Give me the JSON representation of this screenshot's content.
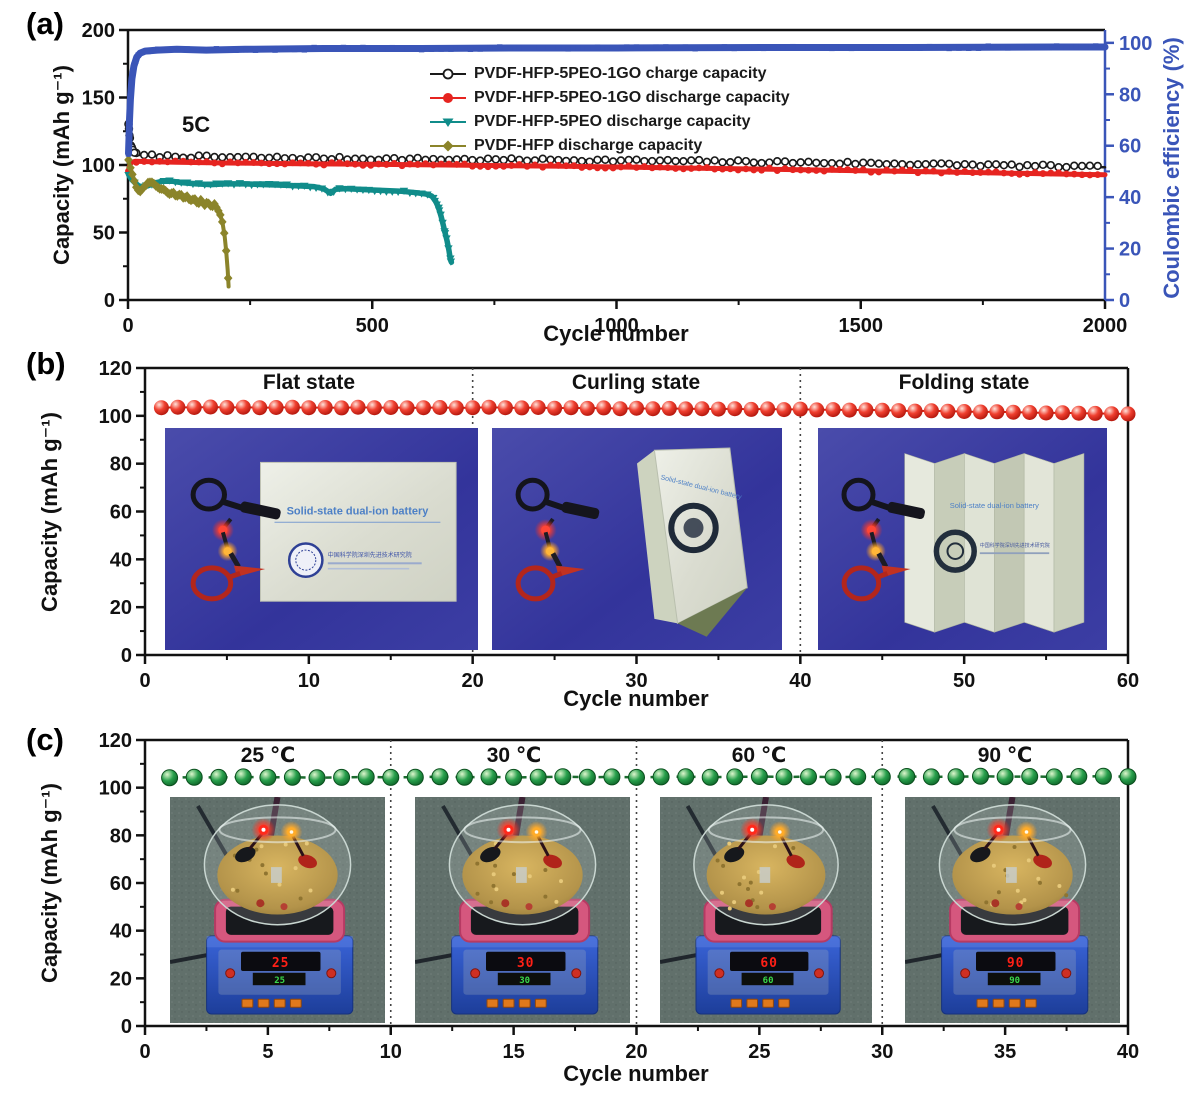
{
  "figure": {
    "panel_a": {
      "label": "(a)"
    },
    "panel_b": {
      "label": "(b)",
      "pouch_title": "Solid-state dual-ion battery",
      "pouch_subtitle": "中国科学院深圳先进技术研究院",
      "photos": [
        {
          "state": "flat"
        },
        {
          "state": "curling"
        },
        {
          "state": "folding"
        }
      ]
    },
    "panel_c": {
      "label": "(c)",
      "photos": [
        {
          "temp": "25"
        },
        {
          "temp": "30"
        },
        {
          "temp": "60"
        },
        {
          "temp": "90"
        }
      ]
    }
  },
  "colors": {
    "charge_black": "#1a1a1a",
    "discharge_red": "#e62420",
    "peo_teal": "#108c8a",
    "hfp_olive": "#8b842a",
    "efficiency_blue": "#3a55b8",
    "sphere_red": "#e8281e",
    "sphere_green": "#1d9644"
  },
  "chart_data": [
    {
      "id": "panel-a",
      "type": "scatter",
      "xlabel": "Cycle number",
      "ylabel_left": "Capacity (mAh g⁻¹)",
      "ylabel_right": "Coulombic efficiency (%)",
      "annotation": "5C",
      "xlim": [
        0,
        2000
      ],
      "xticks": [
        0,
        500,
        1000,
        1500,
        2000
      ],
      "xminor": [
        250,
        750,
        1250,
        1750
      ],
      "ylim_left": [
        0,
        200
      ],
      "yticks_left": [
        0,
        50,
        100,
        150,
        200
      ],
      "yminor_left": [
        25,
        75,
        125,
        175
      ],
      "ylim_right": [
        0,
        105
      ],
      "yticks_right": [
        0,
        20,
        40,
        60,
        80,
        100
      ],
      "yminor_right": [
        10,
        30,
        50,
        70,
        90
      ],
      "series": [
        {
          "name": "PVDF-HFP-5PEO-1GO charge capacity",
          "color": "#1a1a1a",
          "marker": "open-circle",
          "axis": "left",
          "points": [
            [
              1,
              131
            ],
            [
              2,
              126
            ],
            [
              4,
              119
            ],
            [
              7,
              113
            ],
            [
              12,
              109
            ],
            [
              20,
              107.5
            ],
            [
              40,
              107
            ],
            [
              80,
              106.5
            ],
            [
              150,
              106
            ],
            [
              250,
              105.5
            ],
            [
              400,
              105
            ],
            [
              550,
              104.5
            ],
            [
              700,
              104
            ],
            [
              850,
              103.8
            ],
            [
              1000,
              103.3
            ],
            [
              1150,
              102.8
            ],
            [
              1300,
              102.3
            ],
            [
              1450,
              101.6
            ],
            [
              1600,
              100.8
            ],
            [
              1750,
              100
            ],
            [
              1900,
              99
            ],
            [
              2000,
              98.3
            ]
          ]
        },
        {
          "name": "PVDF-HFP-5PEO-1GO discharge capacity",
          "color": "#e62420",
          "marker": "circle",
          "axis": "left",
          "points": [
            [
              1,
              96
            ],
            [
              2,
              98
            ],
            [
              4,
              100.5
            ],
            [
              8,
              102
            ],
            [
              15,
              102.8
            ],
            [
              40,
              102.5
            ],
            [
              100,
              102
            ],
            [
              200,
              101.5
            ],
            [
              350,
              101
            ],
            [
              500,
              100.5
            ],
            [
              700,
              99.8
            ],
            [
              900,
              99
            ],
            [
              1100,
              98
            ],
            [
              1300,
              97
            ],
            [
              1500,
              95.8
            ],
            [
              1700,
              94.6
            ],
            [
              1900,
              93.3
            ],
            [
              2000,
              92.8
            ]
          ]
        },
        {
          "name": "PVDF-HFP-5PEO discharge capacity",
          "color": "#108c8a",
          "marker": "triangle-down",
          "axis": "left",
          "points": [
            [
              1,
              93
            ],
            [
              4,
              91
            ],
            [
              8,
              89
            ],
            [
              14,
              87
            ],
            [
              22,
              84.5
            ],
            [
              30,
              83.5
            ],
            [
              40,
              84.5
            ],
            [
              55,
              86.5
            ],
            [
              70,
              88
            ],
            [
              90,
              88
            ],
            [
              110,
              87
            ],
            [
              140,
              86
            ],
            [
              170,
              85.5
            ],
            [
              200,
              86
            ],
            [
              240,
              86
            ],
            [
              280,
              85.5
            ],
            [
              320,
              85
            ],
            [
              350,
              84.5
            ],
            [
              380,
              84
            ],
            [
              400,
              82.5
            ],
            [
              415,
              79
            ],
            [
              425,
              82
            ],
            [
              445,
              82.5
            ],
            [
              470,
              82
            ],
            [
              500,
              81.5
            ],
            [
              530,
              81
            ],
            [
              560,
              80.5
            ],
            [
              590,
              79.5
            ],
            [
              610,
              78.5
            ],
            [
              622,
              77
            ],
            [
              630,
              73
            ],
            [
              636,
              68
            ],
            [
              641,
              62
            ],
            [
              645,
              56
            ],
            [
              649,
              50
            ],
            [
              653,
              44
            ],
            [
              657,
              37
            ],
            [
              660,
              30
            ],
            [
              662,
              28
            ]
          ]
        },
        {
          "name": "PVDF-HFP discharge capacity",
          "color": "#8b842a",
          "marker": "diamond",
          "axis": "left",
          "points": [
            [
              1,
              104
            ],
            [
              3,
              100
            ],
            [
              6,
              97
            ],
            [
              10,
              92
            ],
            [
              14,
              87
            ],
            [
              18,
              83
            ],
            [
              24,
              80.5
            ],
            [
              30,
              82
            ],
            [
              36,
              85
            ],
            [
              43,
              87.5
            ],
            [
              50,
              87
            ],
            [
              57,
              84.5
            ],
            [
              64,
              82
            ],
            [
              71,
              83
            ],
            [
              78,
              80.5
            ],
            [
              85,
              78.5
            ],
            [
              92,
              80
            ],
            [
              99,
              76.5
            ],
            [
              107,
              78.5
            ],
            [
              114,
              75
            ],
            [
              121,
              77
            ],
            [
              128,
              73.5
            ],
            [
              136,
              75.5
            ],
            [
              143,
              71.5
            ],
            [
              150,
              74
            ],
            [
              157,
              70.5
            ],
            [
              164,
              72.5
            ],
            [
              171,
              69
            ],
            [
              178,
              71
            ],
            [
              184,
              67
            ],
            [
              189,
              63
            ],
            [
              194,
              56
            ],
            [
              198,
              47
            ],
            [
              201,
              36
            ],
            [
              204,
              22
            ],
            [
              206,
              10
            ]
          ]
        },
        {
          "name": "Coulombic efficiency",
          "color": "#3a55b8",
          "marker": "square",
          "axis": "right",
          "points": [
            [
              1,
              57
            ],
            [
              2,
              63
            ],
            [
              3,
              70
            ],
            [
              5,
              78
            ],
            [
              8,
              86
            ],
            [
              12,
              91
            ],
            [
              18,
              94.5
            ],
            [
              25,
              96
            ],
            [
              35,
              96.8
            ],
            [
              60,
              97.2
            ],
            [
              100,
              97.5
            ],
            [
              160,
              97.2
            ],
            [
              240,
              97.5
            ],
            [
              400,
              97.8
            ],
            [
              600,
              97.8
            ],
            [
              800,
              98
            ],
            [
              1000,
              98
            ],
            [
              1300,
              98.2
            ],
            [
              1600,
              98.2
            ],
            [
              1900,
              98.4
            ],
            [
              2000,
              98.4
            ]
          ]
        }
      ]
    },
    {
      "id": "panel-b",
      "type": "scatter",
      "xlabel": "Cycle number",
      "ylabel": "Capacity (mAh g⁻¹)",
      "xlim": [
        0,
        60
      ],
      "xticks": [
        0,
        10,
        20,
        30,
        40,
        50,
        60
      ],
      "ylim": [
        0,
        120
      ],
      "yticks": [
        0,
        20,
        40,
        60,
        80,
        100,
        120
      ],
      "dividers": [
        20,
        40
      ],
      "sections": [
        {
          "label": "Flat state",
          "range": [
            0,
            20
          ]
        },
        {
          "label": "Curling state",
          "range": [
            20,
            40
          ]
        },
        {
          "label": "Folding state",
          "range": [
            40,
            60
          ]
        }
      ],
      "marker": "sphere",
      "color": "#e8281e",
      "x_start": 1,
      "values": [
        103.4,
        103.6,
        103.5,
        103.7,
        103.5,
        103.6,
        103.4,
        103.5,
        103.6,
        103.4,
        103.5,
        103.3,
        103.6,
        103.4,
        103.5,
        103.3,
        103.4,
        103.5,
        103.3,
        103.4,
        103.6,
        103.4,
        103.3,
        103.5,
        103.2,
        103.4,
        103.1,
        103.3,
        103.0,
        103.2,
        103.0,
        103.1,
        102.9,
        103.0,
        102.8,
        103.0,
        102.7,
        102.9,
        102.6,
        102.8,
        102.5,
        102.6,
        102.4,
        102.5,
        102.3,
        102.2,
        102.0,
        102.1,
        101.9,
        101.8,
        101.6,
        101.7,
        101.5,
        101.4,
        101.2,
        101.3,
        101.1,
        101.0,
        100.9,
        100.8
      ]
    },
    {
      "id": "panel-c",
      "type": "scatter",
      "xlabel": "Cycle number",
      "ylabel": "Capacity (mAh g⁻¹)",
      "xlim": [
        0,
        40
      ],
      "xticks": [
        0,
        5,
        10,
        15,
        20,
        25,
        30,
        35,
        40
      ],
      "ylim": [
        0,
        120
      ],
      "yticks": [
        0,
        20,
        40,
        60,
        80,
        100,
        120
      ],
      "dividers": [
        10,
        20,
        30
      ],
      "sections": [
        {
          "label": "25 ℃",
          "range": [
            0,
            10
          ]
        },
        {
          "label": "30 ℃",
          "range": [
            10,
            20
          ]
        },
        {
          "label": "60 ℃",
          "range": [
            20,
            30
          ]
        },
        {
          "label": "90 ℃",
          "range": [
            30,
            40
          ]
        }
      ],
      "marker": "sphere",
      "color": "#1d9644",
      "dashed_line": true,
      "x_start": 1,
      "values": [
        104.2,
        104.4,
        104.3,
        104.5,
        104.3,
        104.4,
        104.2,
        104.3,
        104.5,
        104.3,
        104.4,
        104.6,
        104.4,
        104.5,
        104.3,
        104.4,
        104.6,
        104.4,
        104.5,
        104.3,
        104.5,
        104.6,
        104.4,
        104.5,
        104.7,
        104.5,
        104.6,
        104.4,
        104.6,
        104.5,
        104.7,
        104.5,
        104.6,
        104.8,
        104.6,
        104.7,
        104.5,
        104.7,
        104.8,
        104.6
      ]
    }
  ]
}
